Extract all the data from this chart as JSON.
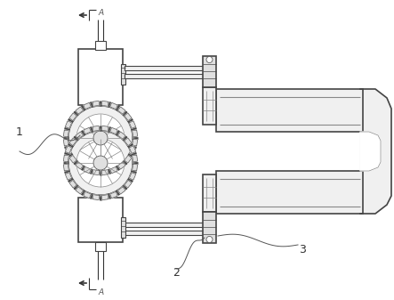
{
  "bg_color": "#ffffff",
  "ec": "#444444",
  "ec_dark": "#333333",
  "ec_light": "#888888",
  "fc_white": "#ffffff",
  "fc_light": "#f0f0f0",
  "fc_mid": "#e0e0e0",
  "label1": "1",
  "label2": "2",
  "label3": "3",
  "label_A": "A",
  "figsize": [
    4.43,
    3.37
  ],
  "dpi": 100
}
